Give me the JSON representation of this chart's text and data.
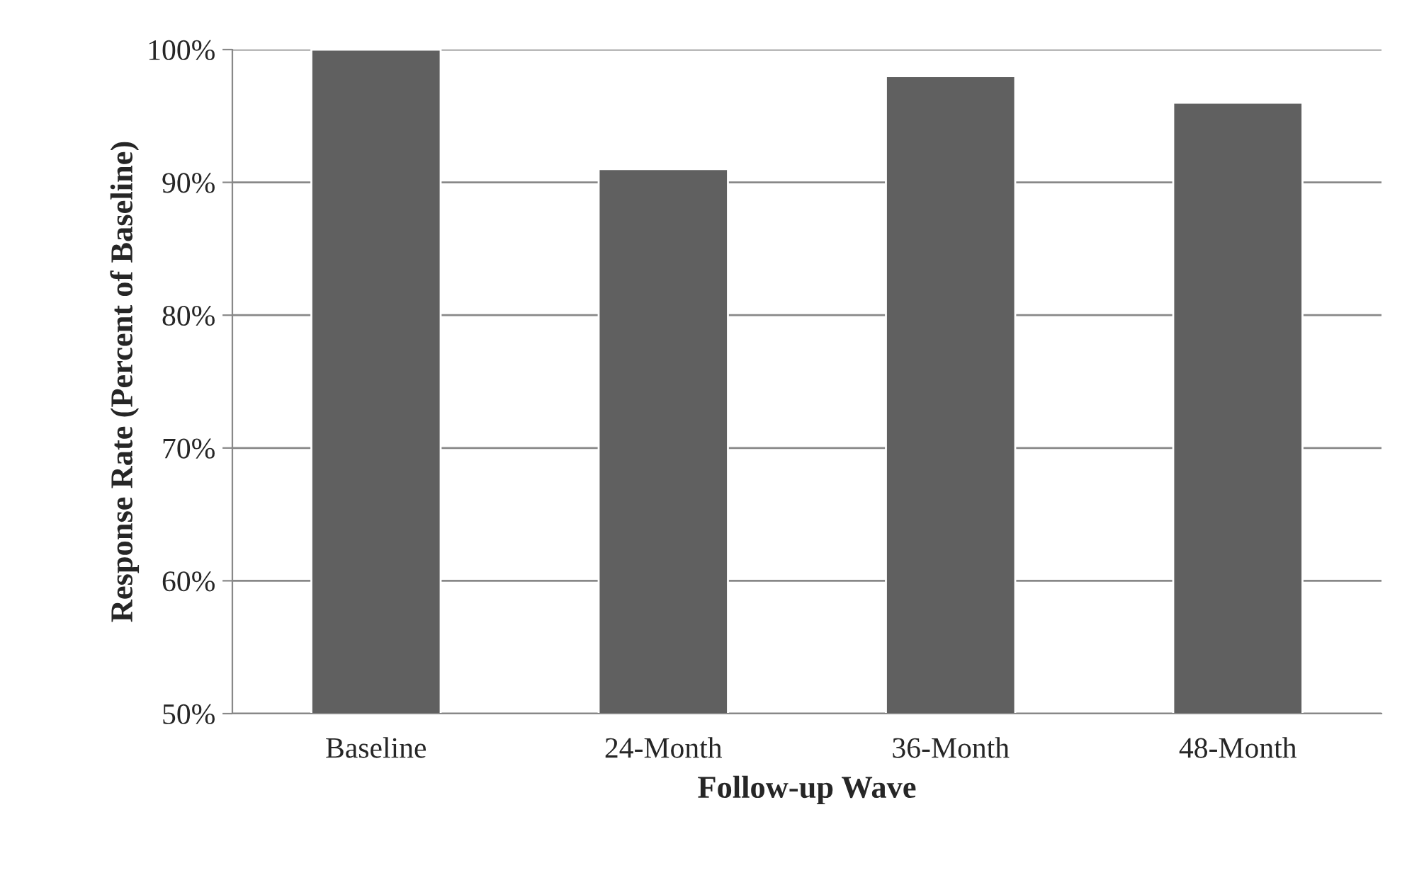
{
  "chart_data": {
    "type": "bar",
    "xlabel": "Follow-up Wave",
    "ylabel": "Response Rate (Percent of Baseline)",
    "categories": [
      "Baseline",
      "24-Month",
      "36-Month",
      "48-Month"
    ],
    "values": [
      100,
      91,
      98,
      96
    ],
    "color": "#606060",
    "ylim": [
      50,
      100
    ],
    "yticks": [
      {
        "value": 50,
        "label": "50%"
      },
      {
        "value": 60,
        "label": "60%"
      },
      {
        "value": 70,
        "label": "70%"
      },
      {
        "value": 80,
        "label": "80%"
      },
      {
        "value": 90,
        "label": "90%"
      },
      {
        "value": 100,
        "label": "100%"
      }
    ],
    "grid": "y",
    "legend": false
  }
}
